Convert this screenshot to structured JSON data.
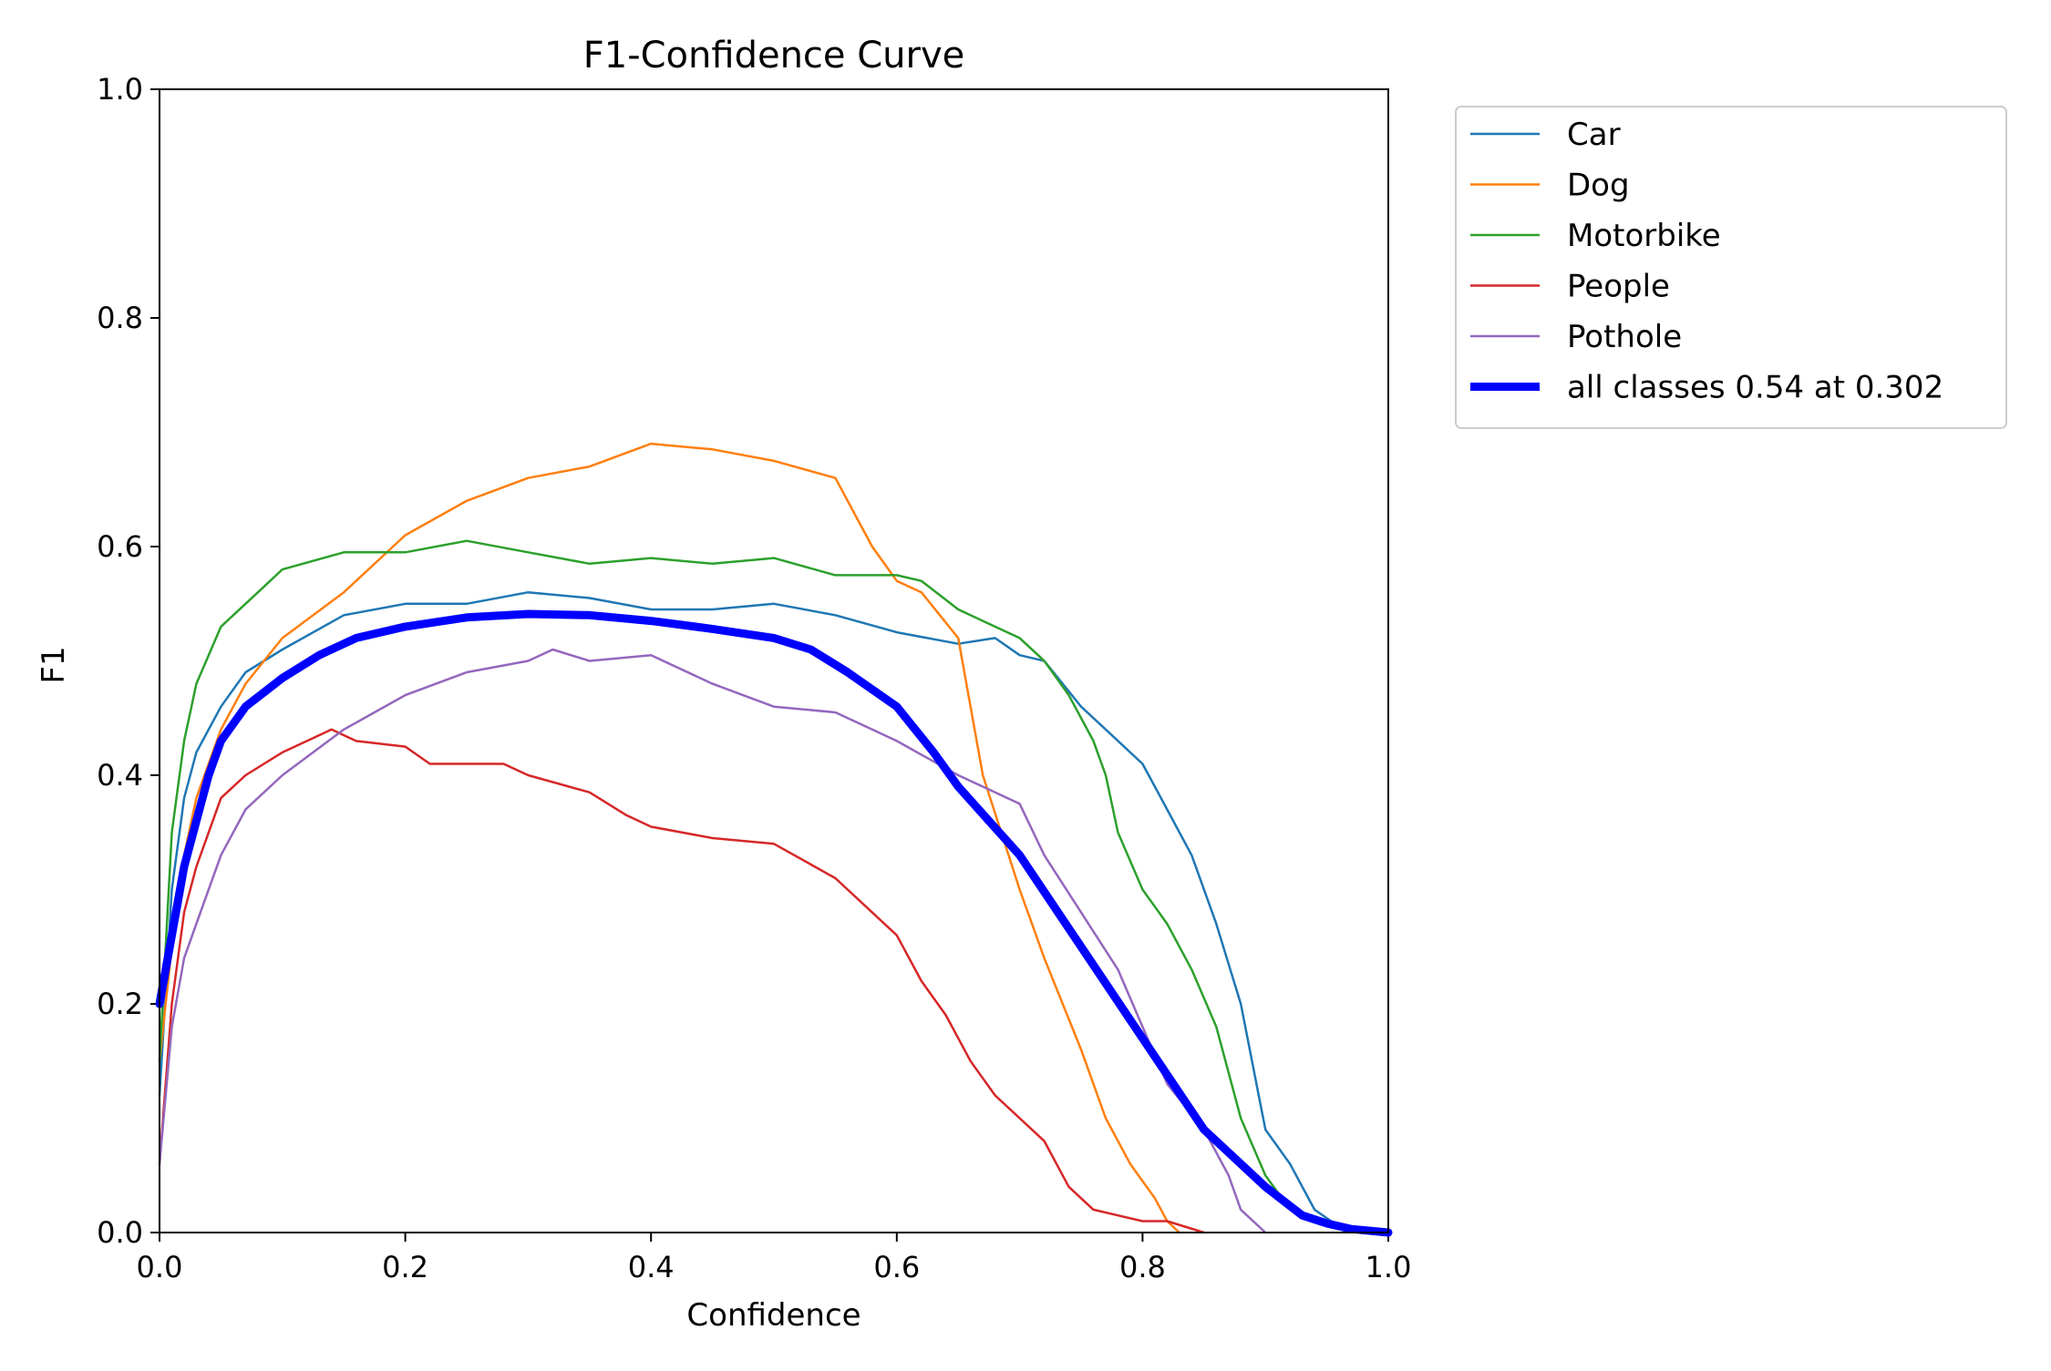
{
  "chart_data": {
    "type": "line",
    "title": "F1-Confidence Curve",
    "xlabel": "Confidence",
    "ylabel": "F1",
    "xlim": [
      0.0,
      1.0
    ],
    "ylim": [
      0.0,
      1.0
    ],
    "grid": false,
    "legend_position": "outside-top-right",
    "x_ticks": [
      "0.0",
      "0.2",
      "0.4",
      "0.6",
      "0.8",
      "1.0"
    ],
    "y_ticks": [
      "0.0",
      "0.2",
      "0.4",
      "0.6",
      "0.8",
      "1.0"
    ],
    "series": [
      {
        "name": "Car",
        "color": "#1f77b4",
        "x": [
          0.0,
          0.01,
          0.02,
          0.03,
          0.05,
          0.07,
          0.1,
          0.15,
          0.2,
          0.25,
          0.3,
          0.35,
          0.4,
          0.45,
          0.5,
          0.55,
          0.6,
          0.65,
          0.68,
          0.7,
          0.72,
          0.75,
          0.77,
          0.8,
          0.82,
          0.84,
          0.86,
          0.88,
          0.9,
          0.92,
          0.94,
          0.96,
          1.0
        ],
        "y": [
          0.12,
          0.3,
          0.38,
          0.42,
          0.46,
          0.49,
          0.51,
          0.54,
          0.55,
          0.55,
          0.56,
          0.555,
          0.545,
          0.545,
          0.55,
          0.54,
          0.525,
          0.515,
          0.52,
          0.505,
          0.5,
          0.46,
          0.44,
          0.41,
          0.37,
          0.33,
          0.27,
          0.2,
          0.09,
          0.06,
          0.02,
          0.005,
          0.0
        ]
      },
      {
        "name": "Dog",
        "color": "#ff7f0e",
        "x": [
          0.0,
          0.01,
          0.02,
          0.03,
          0.05,
          0.07,
          0.1,
          0.15,
          0.2,
          0.25,
          0.3,
          0.35,
          0.4,
          0.45,
          0.5,
          0.55,
          0.58,
          0.6,
          0.62,
          0.65,
          0.67,
          0.7,
          0.72,
          0.75,
          0.77,
          0.79,
          0.8,
          0.81,
          0.82,
          0.83
        ],
        "y": [
          0.15,
          0.25,
          0.33,
          0.38,
          0.44,
          0.48,
          0.52,
          0.56,
          0.61,
          0.64,
          0.66,
          0.67,
          0.69,
          0.685,
          0.675,
          0.66,
          0.6,
          0.57,
          0.56,
          0.52,
          0.4,
          0.3,
          0.24,
          0.16,
          0.1,
          0.06,
          0.045,
          0.03,
          0.01,
          0.0
        ]
      },
      {
        "name": "Motorbike",
        "color": "#2ca02c",
        "x": [
          0.0,
          0.01,
          0.02,
          0.03,
          0.05,
          0.07,
          0.1,
          0.15,
          0.2,
          0.25,
          0.3,
          0.35,
          0.4,
          0.45,
          0.5,
          0.55,
          0.6,
          0.62,
          0.65,
          0.68,
          0.7,
          0.72,
          0.74,
          0.76,
          0.77,
          0.78,
          0.8,
          0.82,
          0.84,
          0.86,
          0.88,
          0.9,
          0.92,
          0.94
        ],
        "y": [
          0.15,
          0.35,
          0.43,
          0.48,
          0.53,
          0.55,
          0.58,
          0.595,
          0.595,
          0.605,
          0.595,
          0.585,
          0.59,
          0.585,
          0.59,
          0.575,
          0.575,
          0.57,
          0.545,
          0.53,
          0.52,
          0.5,
          0.47,
          0.43,
          0.4,
          0.35,
          0.3,
          0.27,
          0.23,
          0.18,
          0.1,
          0.05,
          0.02,
          0.01
        ]
      },
      {
        "name": "People",
        "color": "#d62728",
        "x": [
          0.0,
          0.01,
          0.02,
          0.03,
          0.05,
          0.07,
          0.1,
          0.12,
          0.14,
          0.16,
          0.2,
          0.22,
          0.25,
          0.28,
          0.3,
          0.35,
          0.38,
          0.4,
          0.45,
          0.5,
          0.55,
          0.58,
          0.6,
          0.62,
          0.64,
          0.66,
          0.68,
          0.7,
          0.72,
          0.74,
          0.76,
          0.78,
          0.8,
          0.82,
          0.85
        ],
        "y": [
          0.06,
          0.2,
          0.28,
          0.32,
          0.38,
          0.4,
          0.42,
          0.43,
          0.44,
          0.43,
          0.425,
          0.41,
          0.41,
          0.41,
          0.4,
          0.385,
          0.365,
          0.355,
          0.345,
          0.34,
          0.31,
          0.28,
          0.26,
          0.22,
          0.19,
          0.15,
          0.12,
          0.1,
          0.08,
          0.04,
          0.02,
          0.015,
          0.01,
          0.01,
          0.0
        ]
      },
      {
        "name": "Pothole",
        "color": "#9467bd",
        "x": [
          0.0,
          0.01,
          0.02,
          0.03,
          0.05,
          0.07,
          0.1,
          0.15,
          0.2,
          0.25,
          0.3,
          0.32,
          0.35,
          0.4,
          0.45,
          0.5,
          0.55,
          0.58,
          0.6,
          0.65,
          0.68,
          0.7,
          0.72,
          0.75,
          0.78,
          0.8,
          0.82,
          0.85,
          0.87,
          0.88,
          0.9
        ],
        "y": [
          0.06,
          0.18,
          0.24,
          0.27,
          0.33,
          0.37,
          0.4,
          0.44,
          0.47,
          0.49,
          0.5,
          0.51,
          0.5,
          0.505,
          0.48,
          0.46,
          0.455,
          0.44,
          0.43,
          0.4,
          0.385,
          0.375,
          0.33,
          0.28,
          0.23,
          0.18,
          0.13,
          0.09,
          0.05,
          0.02,
          0.0
        ]
      },
      {
        "name": "all classes 0.54 at 0.302",
        "color": "#0000ff",
        "x": [
          0.0,
          0.01,
          0.02,
          0.03,
          0.04,
          0.05,
          0.07,
          0.1,
          0.13,
          0.16,
          0.2,
          0.25,
          0.3,
          0.35,
          0.4,
          0.45,
          0.5,
          0.53,
          0.56,
          0.6,
          0.63,
          0.65,
          0.7,
          0.75,
          0.8,
          0.85,
          0.9,
          0.93,
          0.95,
          0.97,
          1.0
        ],
        "y": [
          0.2,
          0.26,
          0.32,
          0.36,
          0.4,
          0.43,
          0.46,
          0.485,
          0.505,
          0.52,
          0.53,
          0.538,
          0.541,
          0.54,
          0.535,
          0.528,
          0.52,
          0.51,
          0.49,
          0.46,
          0.42,
          0.39,
          0.33,
          0.25,
          0.17,
          0.09,
          0.04,
          0.015,
          0.008,
          0.003,
          0.0
        ]
      }
    ]
  }
}
